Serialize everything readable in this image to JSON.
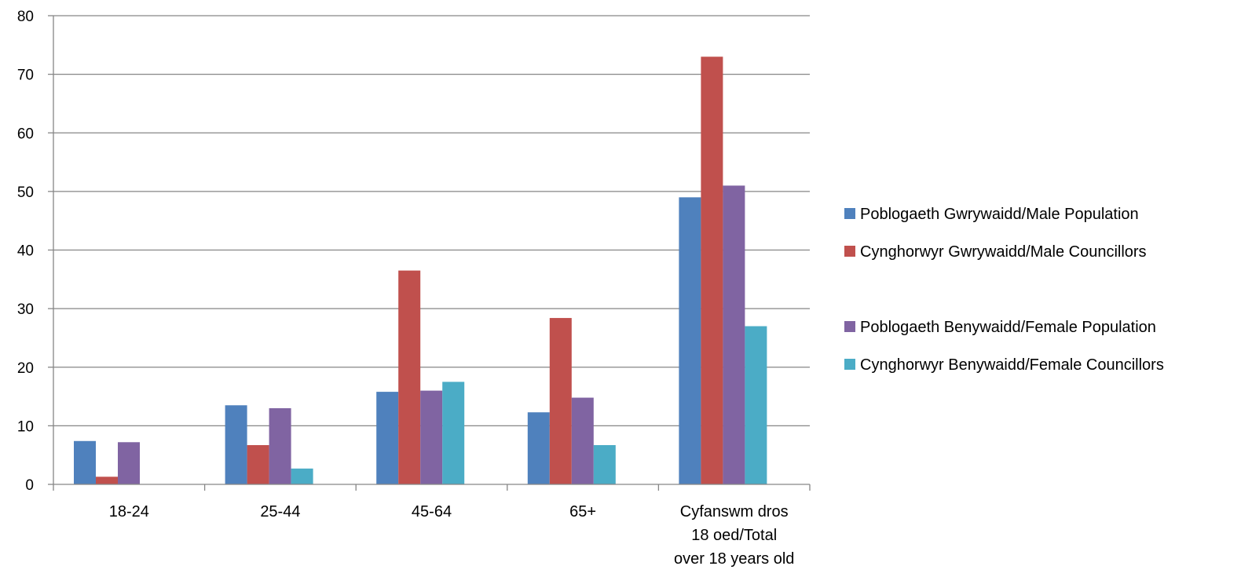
{
  "chart_data": {
    "type": "bar",
    "categories": [
      [
        "18-24"
      ],
      [
        "25-44"
      ],
      [
        "45-64"
      ],
      [
        "65+"
      ],
      [
        "Cyfanswm dros",
        "18 oed/Total",
        "over 18 years old"
      ]
    ],
    "series": [
      {
        "name": "Poblogaeth Gwrywaidd/Male Population",
        "color": "#4F81BD",
        "values": [
          7.4,
          13.5,
          15.8,
          12.3,
          49
        ]
      },
      {
        "name": "Cynghorwyr Gwrywaidd/Male Councillors",
        "color": "#C0504D",
        "values": [
          1.3,
          6.7,
          36.5,
          28.4,
          73
        ]
      },
      {
        "name": "Poblogaeth Benywaidd/Female Population",
        "color": "#8064A2",
        "values": [
          7.2,
          13,
          16,
          14.8,
          51
        ]
      },
      {
        "name": "Cynghorwyr Benywaidd/Female Councillors",
        "color": "#4BACC6",
        "values": [
          0,
          2.7,
          17.5,
          6.7,
          27
        ]
      }
    ],
    "yticks": [
      "0",
      "10",
      "20",
      "30",
      "40",
      "50",
      "60",
      "70",
      "80"
    ],
    "ylim": [
      0,
      80
    ],
    "grid": true,
    "legend_position": "right"
  }
}
